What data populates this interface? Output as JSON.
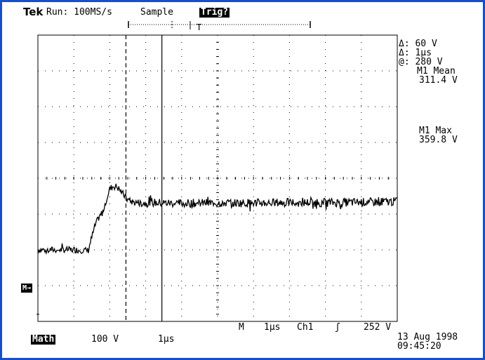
{
  "header": {
    "brand": "Tek",
    "run_status": "Run: 100MS/s",
    "acq_mode": "Sample",
    "trigger_status": "Trig?",
    "trigger_position_marker": "T"
  },
  "readouts": {
    "delta_v": "Δ: 60 V",
    "delta_t": "Δ: 1μs",
    "at_level": "@: 280 V",
    "m1_mean_label": "M1 Mean",
    "m1_mean_value": "311.4 V",
    "m1_max_label": "M1 Max",
    "m1_max_value": "359.8 V"
  },
  "markers": {
    "ground": "M→"
  },
  "footer": {
    "horizontal_label": "M",
    "horizontal_scale": "1μs",
    "trigger_source": "Ch1",
    "trigger_slope": "ʃ",
    "trigger_level": "252 V",
    "channel_name": "Math",
    "channel_scale": "100 V",
    "channel_time": "1μs",
    "date": "13 Aug 1998",
    "time": "09:45:20"
  },
  "chart_data": {
    "type": "line",
    "title": "",
    "xlabel": "",
    "ylabel": "",
    "x_unit": "μs",
    "y_unit": "V",
    "x_range": [
      0,
      10
    ],
    "y_range": [
      -20,
      780
    ],
    "grid": true,
    "series": [
      {
        "x": [
          0,
          0.5,
          1.0,
          1.4,
          1.5,
          1.6,
          1.7,
          1.8,
          1.9,
          2.0,
          2.1,
          2.2,
          2.3,
          2.4,
          2.5,
          2.6,
          2.7,
          2.8,
          2.9,
          3.0,
          3.2,
          3.5,
          4.0,
          5.0,
          6.0,
          7.0,
          8.0,
          9.0,
          10.0
        ],
        "y": [
          180,
          180,
          180,
          178,
          215,
          250,
          270,
          285,
          320,
          350,
          358,
          356,
          345,
          332,
          320,
          315,
          312,
          312,
          310,
          311,
          312,
          311,
          310,
          311,
          311,
          312,
          312,
          313,
          315
        ]
      }
    ],
    "cursors": {
      "vertical_cursor_x": [
        2.45,
        3.45
      ],
      "delta_t": "1μs",
      "delta_v": "60 V"
    }
  }
}
